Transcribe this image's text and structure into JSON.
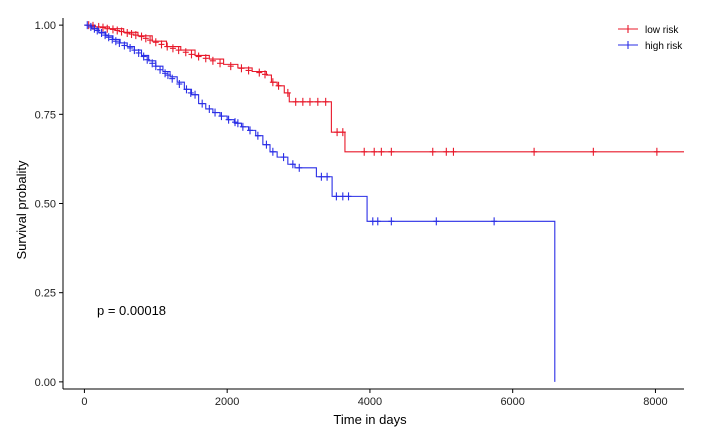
{
  "chart_data": {
    "type": "line",
    "chart_kind": "kaplan-meier survival curve",
    "xlabel": "Time in days",
    "ylabel": "Survival probality",
    "xlim": [
      -300,
      8400
    ],
    "ylim": [
      -0.02,
      1.02
    ],
    "x_ticks": [
      0,
      2000,
      4000,
      6000,
      8000
    ],
    "x_tick_labels": [
      "0",
      "2000",
      "4000",
      "6000",
      "8000"
    ],
    "y_ticks": [
      0,
      0.25,
      0.5,
      0.75,
      1.0
    ],
    "y_tick_labels": [
      "0.00",
      "0.25",
      "0.50",
      "0.75",
      "1.00"
    ],
    "grid": false,
    "legend_position": "top-right",
    "annotation": "p = 0.00018",
    "series": [
      {
        "name": "low risk",
        "color": "#e8182a",
        "steps": [
          [
            0,
            1.0
          ],
          [
            150,
            0.995
          ],
          [
            350,
            0.99
          ],
          [
            550,
            0.98
          ],
          [
            750,
            0.97
          ],
          [
            950,
            0.955
          ],
          [
            1150,
            0.94
          ],
          [
            1350,
            0.93
          ],
          [
            1550,
            0.915
          ],
          [
            1750,
            0.905
          ],
          [
            1950,
            0.89
          ],
          [
            2150,
            0.88
          ],
          [
            2350,
            0.87
          ],
          [
            2550,
            0.86
          ],
          [
            2620,
            0.84
          ],
          [
            2700,
            0.83
          ],
          [
            2800,
            0.81
          ],
          [
            2870,
            0.785
          ],
          [
            3460,
            0.7
          ],
          [
            3650,
            0.645
          ],
          [
            8400,
            0.645
          ]
        ],
        "censors": [
          [
            60,
            1.0
          ],
          [
            120,
            0.998
          ],
          [
            200,
            0.995
          ],
          [
            260,
            0.993
          ],
          [
            320,
            0.99
          ],
          [
            400,
            0.988
          ],
          [
            460,
            0.985
          ],
          [
            520,
            0.982
          ],
          [
            600,
            0.978
          ],
          [
            660,
            0.975
          ],
          [
            720,
            0.972
          ],
          [
            800,
            0.968
          ],
          [
            860,
            0.963
          ],
          [
            920,
            0.958
          ],
          [
            1000,
            0.952
          ],
          [
            1080,
            0.946
          ],
          [
            1160,
            0.94
          ],
          [
            1240,
            0.935
          ],
          [
            1320,
            0.93
          ],
          [
            1420,
            0.924
          ],
          [
            1500,
            0.918
          ],
          [
            1600,
            0.912
          ],
          [
            1700,
            0.907
          ],
          [
            1800,
            0.9
          ],
          [
            1900,
            0.893
          ],
          [
            2050,
            0.885
          ],
          [
            2200,
            0.879
          ],
          [
            2300,
            0.873
          ],
          [
            2450,
            0.867
          ],
          [
            2530,
            0.862
          ],
          [
            2640,
            0.84
          ],
          [
            2720,
            0.83
          ],
          [
            2850,
            0.81
          ],
          [
            2960,
            0.785
          ],
          [
            3060,
            0.785
          ],
          [
            3160,
            0.785
          ],
          [
            3270,
            0.785
          ],
          [
            3380,
            0.785
          ],
          [
            3540,
            0.7
          ],
          [
            3620,
            0.7
          ],
          [
            3920,
            0.645
          ],
          [
            4060,
            0.645
          ],
          [
            4160,
            0.645
          ],
          [
            4300,
            0.645
          ],
          [
            4880,
            0.645
          ],
          [
            5070,
            0.645
          ],
          [
            5170,
            0.645
          ],
          [
            6300,
            0.645
          ],
          [
            7130,
            0.645
          ],
          [
            8020,
            0.645
          ]
        ]
      },
      {
        "name": "high risk",
        "color": "#2a2ee6",
        "steps": [
          [
            0,
            1.0
          ],
          [
            100,
            0.99
          ],
          [
            200,
            0.98
          ],
          [
            300,
            0.97
          ],
          [
            400,
            0.96
          ],
          [
            500,
            0.95
          ],
          [
            600,
            0.94
          ],
          [
            700,
            0.93
          ],
          [
            800,
            0.915
          ],
          [
            900,
            0.9
          ],
          [
            1000,
            0.885
          ],
          [
            1100,
            0.87
          ],
          [
            1200,
            0.855
          ],
          [
            1300,
            0.84
          ],
          [
            1400,
            0.82
          ],
          [
            1500,
            0.805
          ],
          [
            1600,
            0.78
          ],
          [
            1700,
            0.765
          ],
          [
            1800,
            0.755
          ],
          [
            1900,
            0.745
          ],
          [
            2000,
            0.735
          ],
          [
            2100,
            0.725
          ],
          [
            2200,
            0.715
          ],
          [
            2300,
            0.705
          ],
          [
            2400,
            0.69
          ],
          [
            2500,
            0.665
          ],
          [
            2600,
            0.645
          ],
          [
            2700,
            0.63
          ],
          [
            2850,
            0.61
          ],
          [
            2950,
            0.6
          ],
          [
            3250,
            0.575
          ],
          [
            3470,
            0.52
          ],
          [
            3960,
            0.45
          ],
          [
            6590,
            0.45
          ],
          [
            6590,
            0.0
          ]
        ],
        "censors": [
          [
            40,
            1.0
          ],
          [
            90,
            0.995
          ],
          [
            140,
            0.99
          ],
          [
            180,
            0.985
          ],
          [
            240,
            0.978
          ],
          [
            290,
            0.972
          ],
          [
            340,
            0.966
          ],
          [
            390,
            0.96
          ],
          [
            440,
            0.955
          ],
          [
            490,
            0.95
          ],
          [
            560,
            0.943
          ],
          [
            640,
            0.936
          ],
          [
            700,
            0.93
          ],
          [
            760,
            0.922
          ],
          [
            830,
            0.912
          ],
          [
            880,
            0.903
          ],
          [
            950,
            0.893
          ],
          [
            1000,
            0.885
          ],
          [
            1060,
            0.875
          ],
          [
            1130,
            0.865
          ],
          [
            1170,
            0.86
          ],
          [
            1230,
            0.85
          ],
          [
            1330,
            0.835
          ],
          [
            1430,
            0.82
          ],
          [
            1490,
            0.81
          ],
          [
            1550,
            0.805
          ],
          [
            1650,
            0.78
          ],
          [
            1750,
            0.765
          ],
          [
            1830,
            0.755
          ],
          [
            1920,
            0.745
          ],
          [
            2020,
            0.735
          ],
          [
            2110,
            0.728
          ],
          [
            2150,
            0.725
          ],
          [
            2220,
            0.715
          ],
          [
            2320,
            0.705
          ],
          [
            2430,
            0.69
          ],
          [
            2550,
            0.665
          ],
          [
            2640,
            0.645
          ],
          [
            2790,
            0.63
          ],
          [
            2920,
            0.61
          ],
          [
            3010,
            0.6
          ],
          [
            3320,
            0.575
          ],
          [
            3400,
            0.575
          ],
          [
            3530,
            0.52
          ],
          [
            3620,
            0.52
          ],
          [
            3700,
            0.52
          ],
          [
            4040,
            0.45
          ],
          [
            4110,
            0.45
          ],
          [
            4300,
            0.45
          ],
          [
            4930,
            0.45
          ],
          [
            5740,
            0.45
          ]
        ]
      }
    ]
  }
}
